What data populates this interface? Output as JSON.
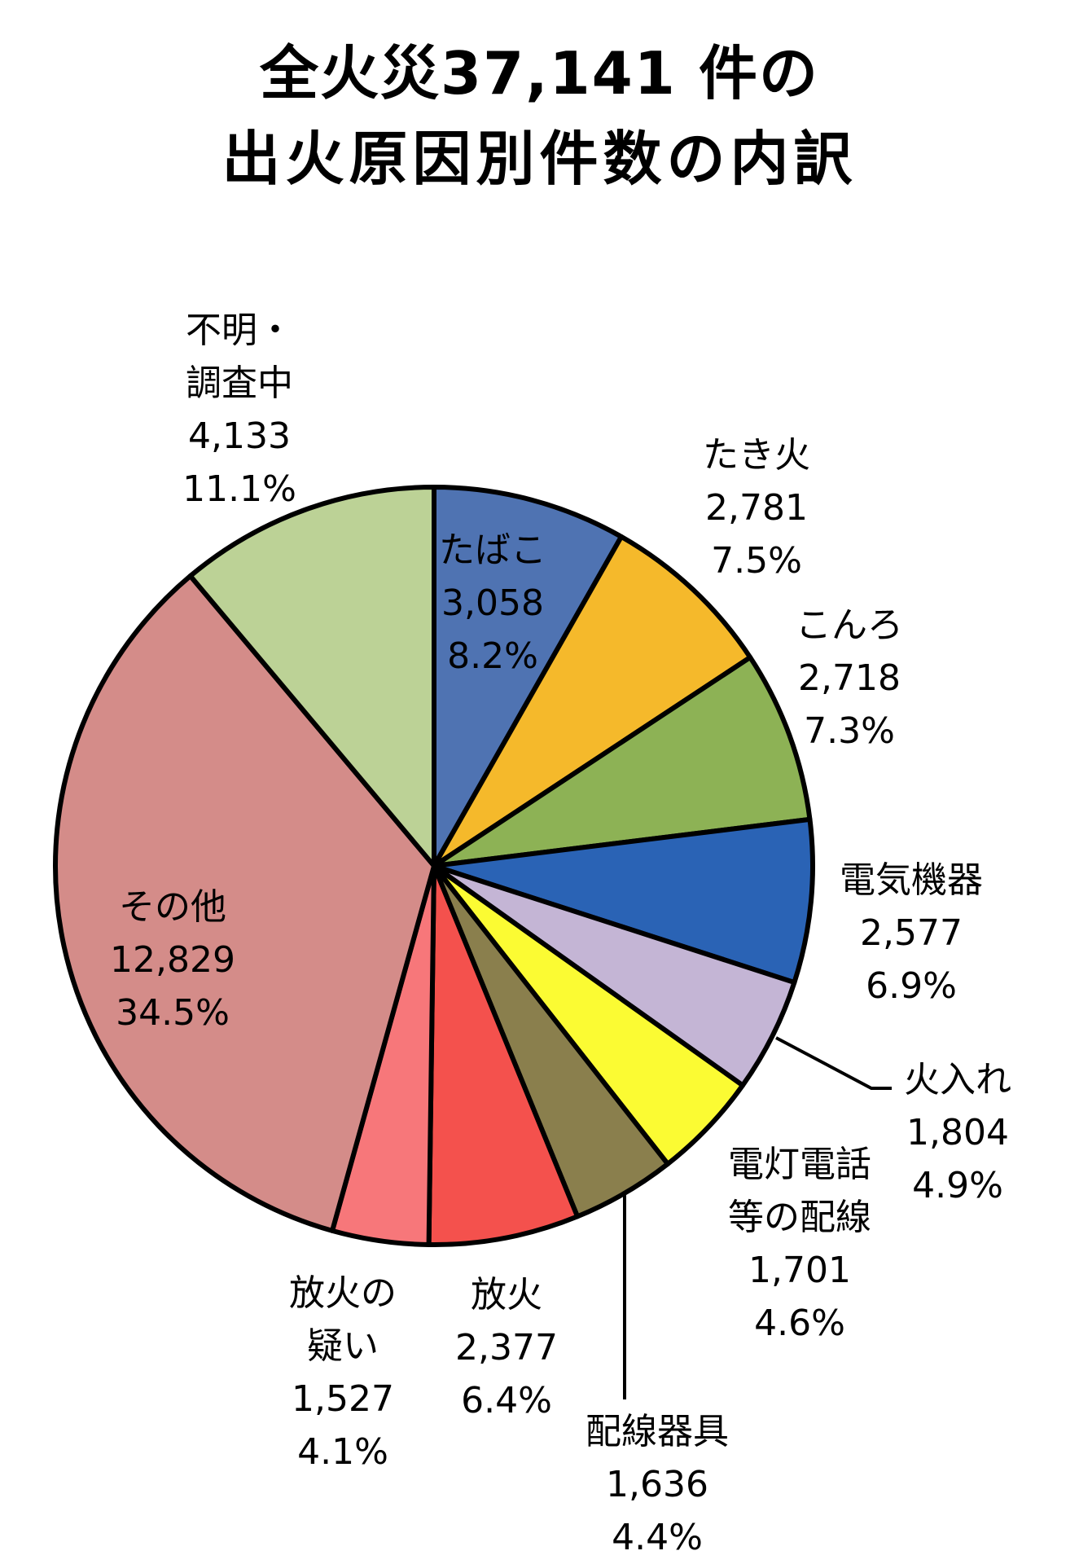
{
  "title": {
    "line1": "全火災37,141 件の",
    "line2": "出火原因別件数の内訳"
  },
  "chart_data": {
    "type": "pie",
    "title": "全火災37,141 件の出火原因別件数の内訳",
    "total": 37141,
    "start_angle": "12 o'clock, clockwise",
    "slices": [
      {
        "label": "たばこ",
        "value": 3058,
        "percent": "8.2%",
        "color": "#4F73B2"
      },
      {
        "label": "たき火",
        "value": 2781,
        "percent": "7.5%",
        "color": "#F5B92B"
      },
      {
        "label": "こんろ",
        "value": 2718,
        "percent": "7.3%",
        "color": "#8DB255"
      },
      {
        "label": "電気機器",
        "value": 2577,
        "percent": "6.9%",
        "color": "#2A63B5"
      },
      {
        "label": "火入れ",
        "value": 1804,
        "percent": "4.9%",
        "color": "#C4B5D5"
      },
      {
        "label": "電灯電話等の配線",
        "value": 1701,
        "percent": "4.6%",
        "color": "#FBFB33"
      },
      {
        "label": "配線器具",
        "value": 1636,
        "percent": "4.4%",
        "color": "#8A7F4D"
      },
      {
        "label": "放火",
        "value": 2377,
        "percent": "6.4%",
        "color": "#F4514D"
      },
      {
        "label": "放火の疑い",
        "value": 1527,
        "percent": "4.1%",
        "color": "#F7777A"
      },
      {
        "label": "その他",
        "value": 12829,
        "percent": "34.5%",
        "color": "#D48C89"
      },
      {
        "label": "不明・調査中",
        "value": 4133,
        "percent": "11.1%",
        "color": "#BCD296"
      }
    ]
  },
  "labels": {
    "tabako": {
      "l1": "たばこ",
      "n": "3,058",
      "p": "8.2%"
    },
    "takibi": {
      "l1": "たき火",
      "n": "2,781",
      "p": "7.5%"
    },
    "konro": {
      "l1": "こんろ",
      "n": "2,718",
      "p": "7.3%"
    },
    "denki": {
      "l1": "電気機器",
      "n": "2,577",
      "p": "6.9%"
    },
    "hiire": {
      "l1": "火入れ",
      "n": "1,804",
      "p": "4.9%"
    },
    "dento": {
      "l1": "電灯電話",
      "l2": "等の配線",
      "n": "1,701",
      "p": "4.6%"
    },
    "haisen": {
      "l1": "配線器具",
      "n": "1,636",
      "p": "4.4%"
    },
    "houka": {
      "l1": "放火",
      "n": "2,377",
      "p": "6.4%"
    },
    "utagai": {
      "l1": "放火の",
      "l2": "疑い",
      "n": "1,527",
      "p": "4.1%"
    },
    "sonota": {
      "l1": "その他",
      "n": "12,829",
      "p": "34.5%"
    },
    "fumei": {
      "l1": "不明・",
      "l2": "調査中",
      "n": "4,133",
      "p": "11.1%"
    }
  }
}
